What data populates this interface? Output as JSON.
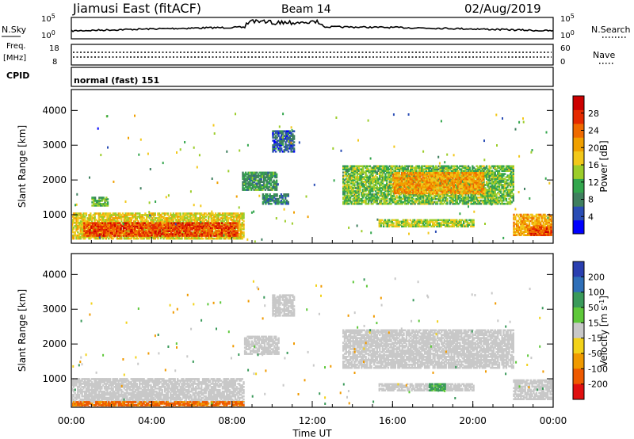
{
  "header": {
    "station": "Jiamusi East (fitACF)",
    "beam": "Beam 14",
    "date": "02/Aug/2019"
  },
  "strip_nsky": {
    "left_label": "N.Sky",
    "right_label": "N.Search",
    "tick_top": "10^5",
    "tick_bottom": "10^0"
  },
  "strip_freq": {
    "left_label_line1": "Freq.",
    "left_label_line2": "[MHz]",
    "left_tick_top": "18",
    "left_tick_bottom": "8",
    "right_label": "Nave",
    "right_tick_top": "60",
    "right_tick_bottom": "0"
  },
  "strip_cpid": {
    "label": "CPID",
    "value": "normal (fast) 151"
  },
  "chart_data": [
    {
      "type": "heatmap",
      "title": "",
      "xlabel": "",
      "ylabel": "Slant Range [km]",
      "x_ticks": [
        "00:00",
        "04:00",
        "08:00",
        "12:00",
        "16:00",
        "20:00",
        "00:00"
      ],
      "x_tick_hours": [
        0,
        4,
        8,
        12,
        16,
        20,
        24
      ],
      "y_ticks": [
        1000,
        2000,
        3000,
        4000
      ],
      "ylim": [
        180,
        4600
      ],
      "xlim": [
        0,
        24
      ],
      "colorbar_label": "Power [dB]",
      "colorbar_ticks": [
        4,
        8,
        12,
        16,
        20,
        24,
        28
      ],
      "colorbar_range": [
        0,
        32
      ],
      "colors": [
        "#0000ff",
        "#2a4db5",
        "#3f7f5f",
        "#33a64d",
        "#9ccd2a",
        "#f2c81a",
        "#f0a000",
        "#ef6a00",
        "#e52a00",
        "#cc0000"
      ],
      "regions": [
        {
          "t0": 0.0,
          "t1": 8.6,
          "r0": 300,
          "r1": 1050,
          "level": 17
        },
        {
          "t0": 0.6,
          "t1": 8.3,
          "r0": 380,
          "r1": 780,
          "level": 26
        },
        {
          "t0": 1.0,
          "t1": 1.8,
          "r0": 1250,
          "r1": 1500,
          "level": 12
        },
        {
          "t0": 8.5,
          "t1": 10.2,
          "r0": 1700,
          "r1": 2200,
          "level": 10
        },
        {
          "t0": 9.5,
          "t1": 10.8,
          "r0": 1300,
          "r1": 1600,
          "level": 8
        },
        {
          "t0": 10.0,
          "t1": 11.1,
          "r0": 2800,
          "r1": 3400,
          "level": 6
        },
        {
          "t0": 13.5,
          "t1": 22.0,
          "r0": 1300,
          "r1": 2400,
          "level": 13
        },
        {
          "t0": 16.0,
          "t1": 20.5,
          "r0": 1600,
          "r1": 2200,
          "level": 21
        },
        {
          "t0": 15.3,
          "t1": 20.0,
          "r0": 650,
          "r1": 850,
          "level": 15
        },
        {
          "t0": 22.0,
          "t1": 24.0,
          "r0": 400,
          "r1": 1000,
          "level": 20
        },
        {
          "t0": 22.8,
          "t1": 24.0,
          "r0": 400,
          "r1": 650,
          "level": 26
        }
      ]
    },
    {
      "type": "heatmap",
      "title": "",
      "xlabel": "Time UT",
      "ylabel": "Slant Range [km]",
      "x_ticks": [
        "00:00",
        "04:00",
        "08:00",
        "12:00",
        "16:00",
        "20:00",
        "00:00"
      ],
      "x_tick_hours": [
        0,
        4,
        8,
        12,
        16,
        20,
        24
      ],
      "y_ticks": [
        1000,
        2000,
        3000,
        4000
      ],
      "ylim": [
        180,
        4600
      ],
      "xlim": [
        0,
        24
      ],
      "colorbar_label": "Velocity [m s^-1]",
      "colorbar_ticks": [
        "200",
        "100",
        "50",
        "15",
        "-15",
        "-50",
        "-100",
        "-200"
      ],
      "colors": [
        "#2a3fb0",
        "#2f6fb8",
        "#3a9a5a",
        "#5ec83a",
        "#c8c8c8",
        "#f2d21a",
        "#f09a00",
        "#ee5a00",
        "#e01010"
      ],
      "regions": [
        {
          "t0": 0.0,
          "t1": 8.6,
          "r0": 300,
          "r1": 1000,
          "v": 0
        },
        {
          "t0": 0.0,
          "t1": 8.6,
          "r0": 180,
          "r1": 320,
          "v": -80
        },
        {
          "t0": 8.6,
          "t1": 10.3,
          "r0": 1700,
          "r1": 2200,
          "v": 0
        },
        {
          "t0": 10.0,
          "t1": 11.1,
          "r0": 2800,
          "r1": 3400,
          "v": 0
        },
        {
          "t0": 13.5,
          "t1": 22.0,
          "r0": 1300,
          "r1": 2400,
          "v": 0
        },
        {
          "t0": 15.3,
          "t1": 20.0,
          "r0": 650,
          "r1": 850,
          "v": 0
        },
        {
          "t0": 17.8,
          "t1": 18.6,
          "r0": 650,
          "r1": 850,
          "v": 40
        },
        {
          "t0": 22.0,
          "t1": 24.0,
          "r0": 400,
          "r1": 950,
          "v": 0
        }
      ]
    }
  ]
}
